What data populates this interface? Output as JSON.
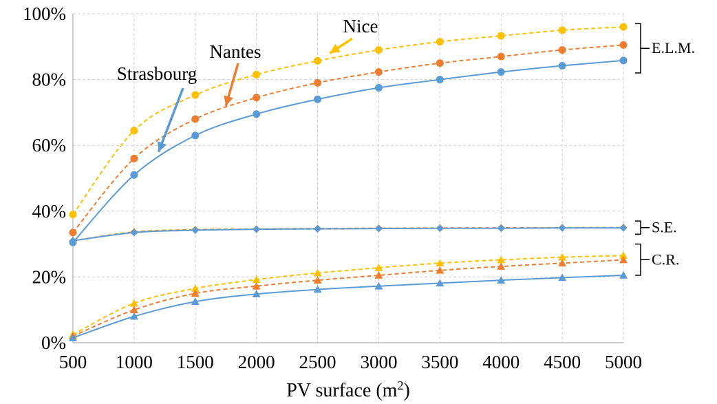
{
  "chart_data": {
    "type": "line",
    "xlabel": "PV surface (m",
    "xlabel_sup": "2",
    "xlabel_end": ")",
    "ylabel": "",
    "x": [
      500,
      1000,
      1500,
      2000,
      2500,
      3000,
      3500,
      4000,
      4500,
      5000
    ],
    "xlim": [
      500,
      5000
    ],
    "ylim": [
      0,
      100
    ],
    "x_ticks": [
      "500",
      "1000",
      "1500",
      "2000",
      "2500",
      "3000",
      "3500",
      "4000",
      "4500",
      "5000"
    ],
    "y_ticks": [
      "0%",
      "20%",
      "40%",
      "60%",
      "80%",
      "100%"
    ],
    "grid": true,
    "colors": {
      "Strasbourg": "#5b9bd5",
      "Nantes": "#ed7d31",
      "Nice": "#ffc000"
    },
    "series": [
      {
        "name": "Strasbourg",
        "group": "E.L.M.",
        "marker": "circle",
        "line": "solid",
        "values": [
          30.5,
          51,
          63,
          69.5,
          74,
          77.5,
          80,
          82.3,
          84.2,
          85.8
        ]
      },
      {
        "name": "Nantes",
        "group": "E.L.M.",
        "marker": "circle",
        "line": "dashed",
        "values": [
          33.5,
          56,
          68,
          74.5,
          79,
          82.3,
          85,
          87,
          89,
          90.5
        ]
      },
      {
        "name": "Nice",
        "group": "E.L.M.",
        "marker": "circle",
        "line": "dashed",
        "values": [
          39,
          64.5,
          75.3,
          81.5,
          85.7,
          89,
          91.5,
          93.3,
          95,
          96
        ]
      },
      {
        "name": "Strasbourg",
        "group": "S.E.",
        "marker": "diamond",
        "line": "solid",
        "values": [
          31,
          33.5,
          34.2,
          34.5,
          34.6,
          34.7,
          34.8,
          34.8,
          34.9,
          34.9
        ]
      },
      {
        "name": "Nantes",
        "group": "S.E.",
        "marker": "diamond",
        "line": "dashed",
        "values": [
          31,
          33.6,
          34.3,
          34.5,
          34.7,
          34.8,
          34.8,
          34.9,
          34.9,
          35
        ]
      },
      {
        "name": "Nice",
        "group": "S.E.",
        "marker": "diamond",
        "line": "dashed",
        "values": [
          31,
          33.7,
          34.4,
          34.6,
          34.7,
          34.8,
          34.9,
          34.9,
          35,
          35
        ]
      },
      {
        "name": "Strasbourg",
        "group": "C.R.",
        "marker": "triangle",
        "line": "solid",
        "values": [
          1.5,
          8,
          12.5,
          14.8,
          16.2,
          17.2,
          18.1,
          19,
          19.8,
          20.5
        ]
      },
      {
        "name": "Nantes",
        "group": "C.R.",
        "marker": "triangle",
        "line": "dashed",
        "values": [
          2,
          10,
          15,
          17.2,
          19,
          20.5,
          22,
          23.2,
          24.2,
          25.2
        ]
      },
      {
        "name": "Nice",
        "group": "C.R.",
        "marker": "triangle",
        "line": "dashed",
        "values": [
          2.5,
          12,
          16.5,
          19.2,
          21.2,
          22.8,
          24.2,
          25.2,
          26,
          26.5
        ]
      }
    ],
    "annotations": [
      {
        "text": "Strasbourg",
        "color": "#5b9bd5",
        "arrow_to": [
          1200,
          58
        ]
      },
      {
        "text": "Nantes",
        "color": "#ed7d31",
        "arrow_to": [
          1750,
          72
        ]
      },
      {
        "text": "Nice",
        "color": "#ffc000",
        "arrow_to": [
          2600,
          88
        ]
      }
    ],
    "group_labels": [
      {
        "text": "E.L.M.",
        "range": [
          82,
          97
        ]
      },
      {
        "text": "S.E.",
        "range": [
          33,
          37
        ]
      },
      {
        "text": "C.R.",
        "range": [
          20.5,
          30
        ]
      }
    ]
  }
}
